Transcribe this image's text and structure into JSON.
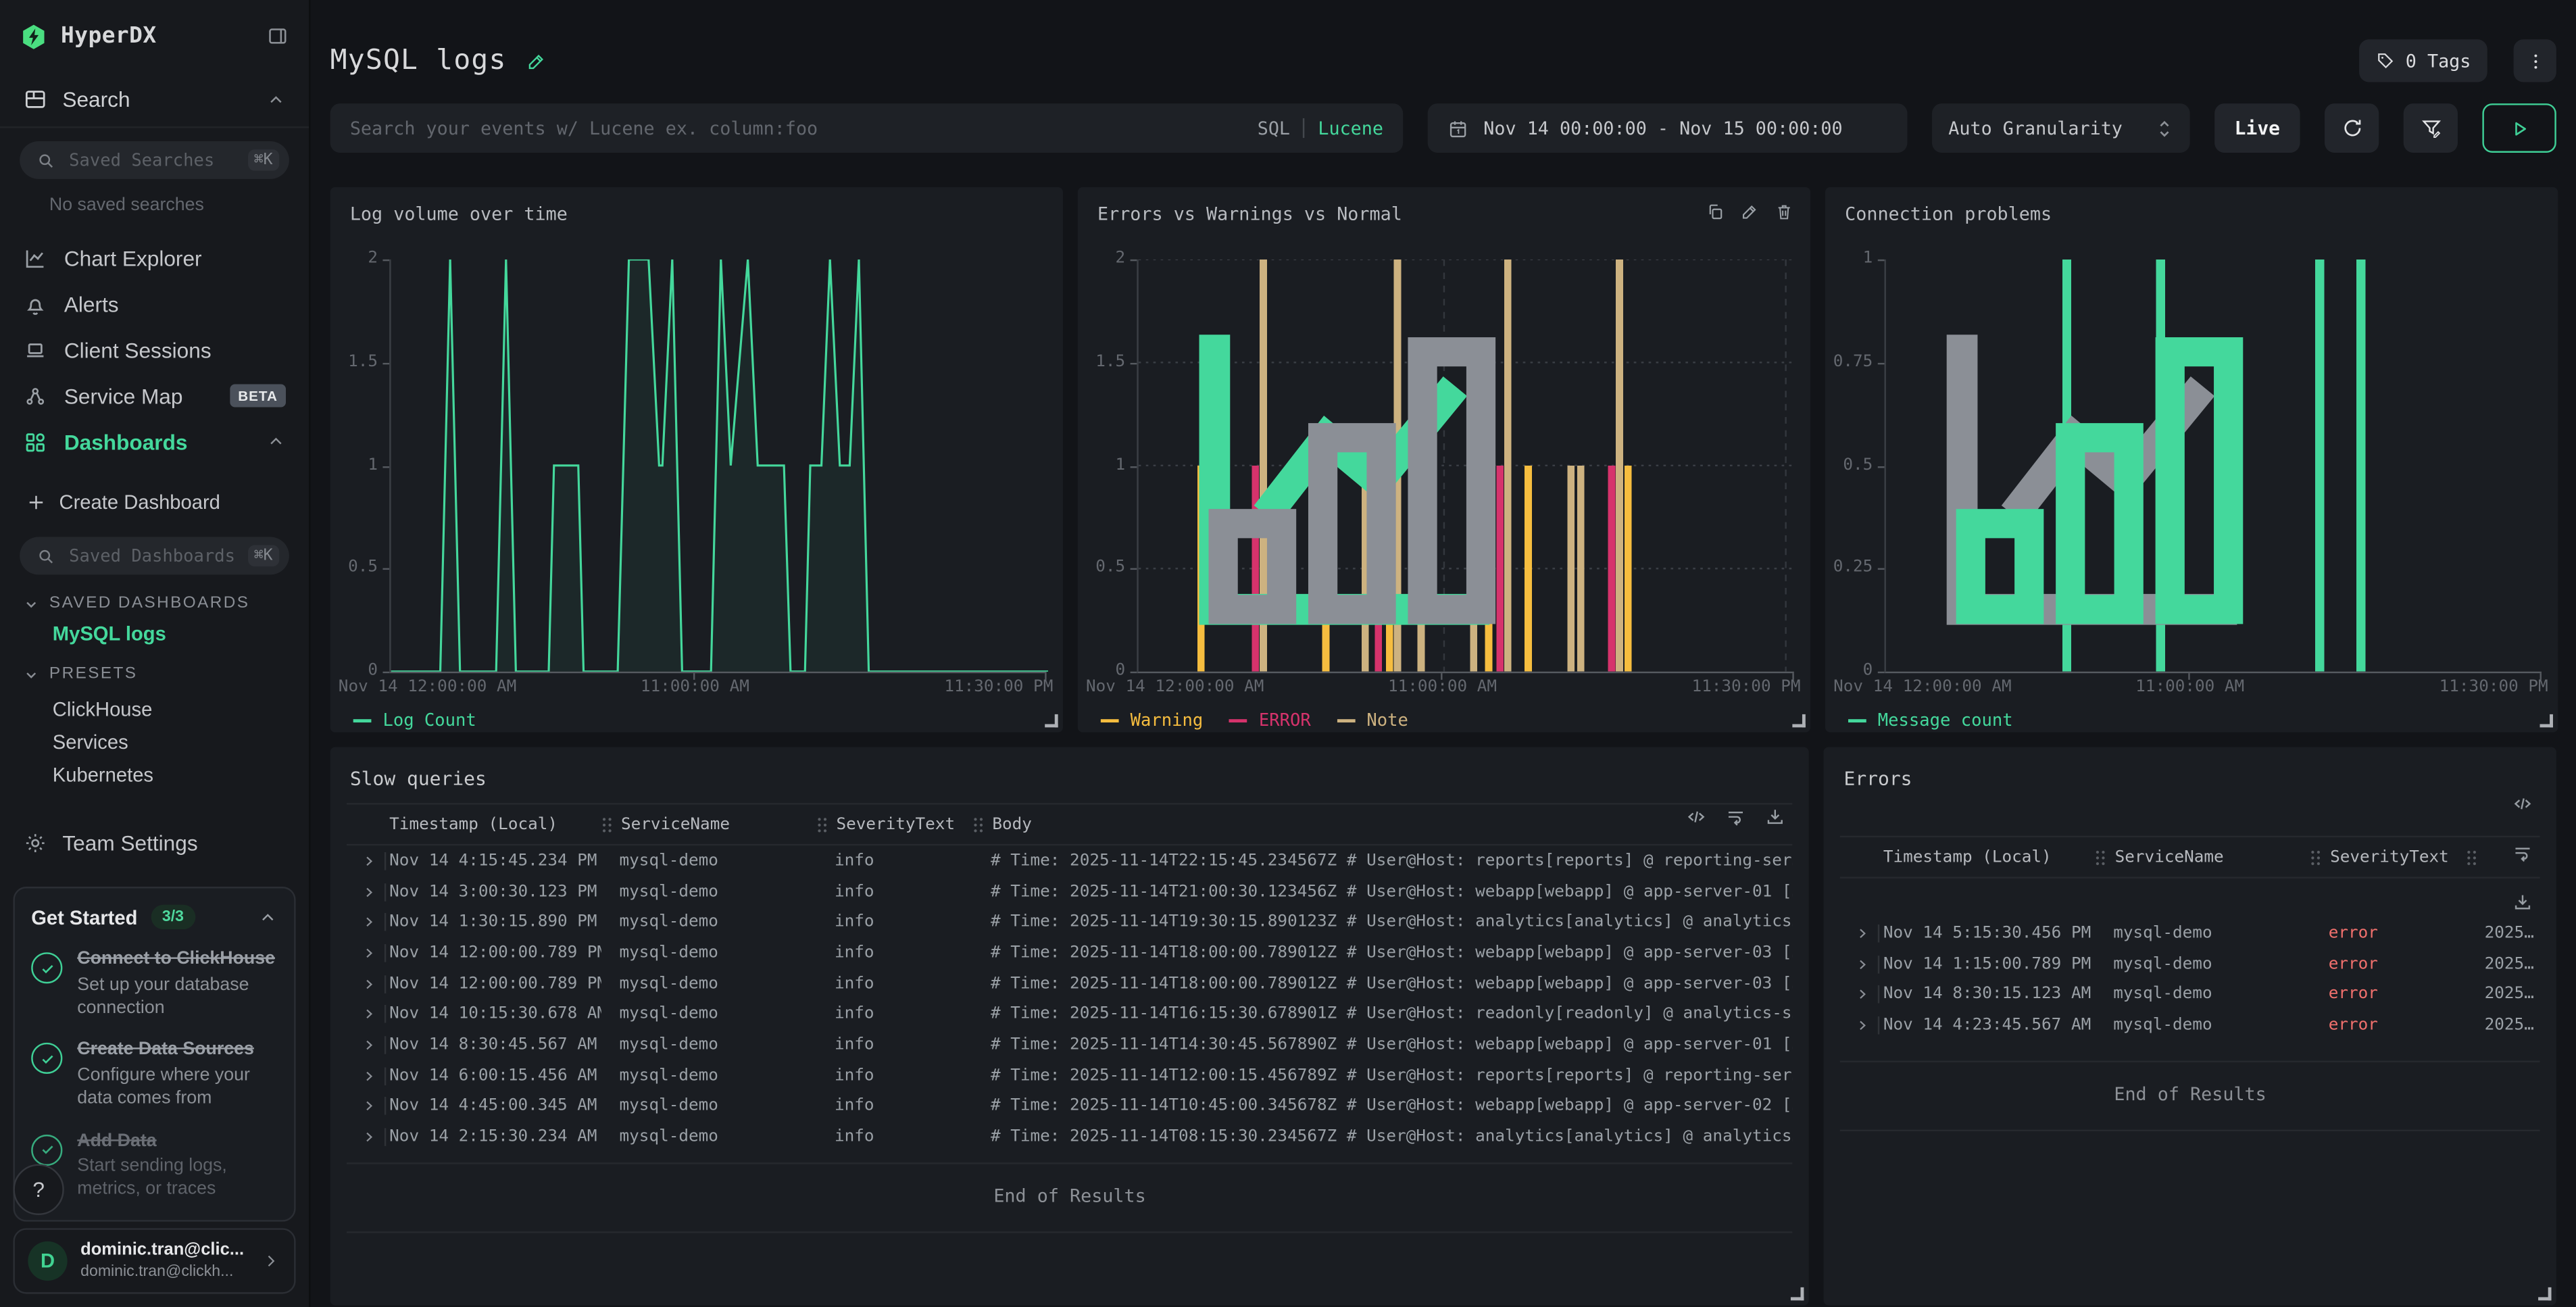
{
  "brand": {
    "name": "HyperDX"
  },
  "sidebar": {
    "search_label": "Search",
    "saved_searches_placeholder": "Saved Searches",
    "shortcut_hint": "⌘K",
    "no_saved_searches": "No saved searches",
    "nav": [
      {
        "label": "Chart Explorer"
      },
      {
        "label": "Alerts"
      },
      {
        "label": "Client Sessions"
      },
      {
        "label": "Service Map",
        "badge": "BETA"
      },
      {
        "label": "Dashboards",
        "active": true
      }
    ],
    "create_dashboard_label": "Create Dashboard",
    "saved_dashboards_placeholder": "Saved Dashboards",
    "sections": {
      "saved": {
        "title": "SAVED DASHBOARDS",
        "items": [
          {
            "label": "MySQL logs",
            "active": true
          }
        ]
      },
      "presets": {
        "title": "PRESETS",
        "items": [
          {
            "label": "ClickHouse"
          },
          {
            "label": "Services"
          },
          {
            "label": "Kubernetes"
          }
        ]
      }
    },
    "team_settings_label": "Team Settings",
    "get_started": {
      "title": "Get Started",
      "badge": "3/3",
      "items": [
        {
          "title": "Connect to ClickHouse",
          "desc": "Set up your database connection",
          "done": true
        },
        {
          "title": "Create Data Sources",
          "desc": "Configure where your data comes from",
          "done": true
        },
        {
          "title": "Add Data",
          "desc": "Start sending logs, metrics, or traces",
          "done": true
        }
      ]
    },
    "help_label": "?",
    "user": {
      "initial": "D",
      "name": "dominic.tran@clic...",
      "email": "dominic.tran@clickh..."
    }
  },
  "header": {
    "title": "MySQL logs",
    "tags_label": "0 Tags"
  },
  "toolbar": {
    "search_placeholder": "Search your events w/ Lucene ex. column:foo",
    "sql_label": "SQL",
    "lucene_label": "Lucene",
    "date_range": "Nov 14 00:00:00 - Nov 15 00:00:00",
    "granularity": "Auto Granularity",
    "live_label": "Live"
  },
  "colors": {
    "accent_green": "#44d89c",
    "warning_yellow": "#f6bd3f",
    "error_pink": "#d6336c",
    "note_tan": "#cdb280",
    "error_text": "#f0706d"
  },
  "chart_data": [
    {
      "type": "line",
      "title": "Log volume over time",
      "ylabel": "",
      "xlabel": "",
      "ylim": [
        0,
        2
      ],
      "yticks": [
        {
          "v": 2,
          "label": "2"
        },
        {
          "v": 1.5,
          "label": "1.5"
        },
        {
          "v": 1,
          "label": "1"
        },
        {
          "v": 0.5,
          "label": "0.5"
        },
        {
          "v": 0,
          "label": "0"
        }
      ],
      "xticks": [
        {
          "pos": 0,
          "label": "Nov 14 12:00:00 AM",
          "align": "left"
        },
        {
          "pos": 0.465,
          "label": "11:00:00 AM",
          "align": "center"
        },
        {
          "pos": 1,
          "label": "11:30:00 PM",
          "align": "right"
        }
      ],
      "series": [
        {
          "name": "Log Count",
          "color": "#44d89c",
          "points": [
            [
              0,
              0
            ],
            [
              0.075,
              0
            ],
            [
              0.09,
              2
            ],
            [
              0.105,
              0
            ],
            [
              0.16,
              0
            ],
            [
              0.175,
              2
            ],
            [
              0.19,
              0
            ],
            [
              0.24,
              0
            ],
            [
              0.248,
              1
            ],
            [
              0.285,
              1
            ],
            [
              0.293,
              0
            ],
            [
              0.345,
              0
            ],
            [
              0.362,
              2
            ],
            [
              0.392,
              2
            ],
            [
              0.408,
              1
            ],
            [
              0.413,
              1
            ],
            [
              0.428,
              2
            ],
            [
              0.443,
              0
            ],
            [
              0.487,
              0
            ],
            [
              0.502,
              2
            ],
            [
              0.517,
              1
            ],
            [
              0.543,
              2
            ],
            [
              0.558,
              1
            ],
            [
              0.598,
              1
            ],
            [
              0.608,
              0
            ],
            [
              0.63,
              0
            ],
            [
              0.638,
              1
            ],
            [
              0.655,
              1
            ],
            [
              0.668,
              2
            ],
            [
              0.683,
              1
            ],
            [
              0.698,
              1
            ],
            [
              0.712,
              2
            ],
            [
              0.727,
              0
            ],
            [
              1,
              0
            ]
          ]
        }
      ],
      "legend_position": "bottom",
      "grid": null,
      "view": "line",
      "bar_width": 4.4
    },
    {
      "type": "bar",
      "title": "Errors vs Warnings vs Normal",
      "ylabel": "",
      "xlabel": "",
      "ylim": [
        0,
        2
      ],
      "yticks": [
        {
          "v": 2,
          "label": "2"
        },
        {
          "v": 1.5,
          "label": "1.5"
        },
        {
          "v": 1,
          "label": "1"
        },
        {
          "v": 0.5,
          "label": "0.5"
        },
        {
          "v": 0,
          "label": "0"
        }
      ],
      "xticks": [
        {
          "pos": 0,
          "label": "Nov 14 12:00:00 AM",
          "align": "left"
        },
        {
          "pos": 0.465,
          "label": "11:00:00 AM",
          "align": "center"
        },
        {
          "pos": 1,
          "label": "11:30:00 PM",
          "align": "right"
        }
      ],
      "series": [
        {
          "name": "Warning",
          "color": "#f6bd3f"
        },
        {
          "name": "ERROR",
          "color": "#d6336c"
        },
        {
          "name": "Note",
          "color": "#cdb280"
        }
      ],
      "bars": [
        {
          "x": 0.095,
          "v": 1,
          "series": "Warning"
        },
        {
          "x": 0.178,
          "v": 1,
          "series": "ERROR"
        },
        {
          "x": 0.19,
          "v": 2,
          "series": "Note"
        },
        {
          "x": 0.285,
          "v": 1,
          "series": "Warning"
        },
        {
          "x": 0.345,
          "v": 1,
          "series": "Note"
        },
        {
          "x": 0.365,
          "v": 1,
          "series": "ERROR"
        },
        {
          "x": 0.382,
          "v": 1,
          "series": "Warning"
        },
        {
          "x": 0.394,
          "v": 2,
          "series": "Note"
        },
        {
          "x": 0.43,
          "v": 1,
          "series": "Note"
        },
        {
          "x": 0.51,
          "v": 1,
          "series": "Note"
        },
        {
          "x": 0.533,
          "v": 1,
          "series": "Warning"
        },
        {
          "x": 0.55,
          "v": 1,
          "series": "ERROR"
        },
        {
          "x": 0.562,
          "v": 2,
          "series": "Note"
        },
        {
          "x": 0.593,
          "v": 1,
          "series": "Warning"
        },
        {
          "x": 0.658,
          "v": 1,
          "series": "Note"
        },
        {
          "x": 0.673,
          "v": 1,
          "series": "Note"
        },
        {
          "x": 0.72,
          "v": 1,
          "series": "ERROR"
        },
        {
          "x": 0.732,
          "v": 2,
          "series": "Note"
        },
        {
          "x": 0.745,
          "v": 1,
          "series": "Warning"
        }
      ],
      "legend_position": "bottom",
      "grid": {
        "h_dotted": true,
        "vlines": [
          0.465,
          0.985
        ]
      },
      "view": "bar",
      "bar_width": 4.4
    },
    {
      "type": "bar",
      "title": "Connection problems",
      "ylabel": "",
      "xlabel": "",
      "ylim": [
        0,
        1
      ],
      "yticks": [
        {
          "v": 1,
          "label": "1"
        },
        {
          "v": 0.75,
          "label": "0.75"
        },
        {
          "v": 0.5,
          "label": "0.5"
        },
        {
          "v": 0.25,
          "label": "0.25"
        },
        {
          "v": 0,
          "label": "0"
        }
      ],
      "xticks": [
        {
          "pos": 0,
          "label": "Nov 14 12:00:00 AM",
          "align": "left"
        },
        {
          "pos": 0.465,
          "label": "11:00:00 AM",
          "align": "center"
        },
        {
          "pos": 1,
          "label": "11:30:00 PM",
          "align": "right"
        }
      ],
      "series": [
        {
          "name": "Message count",
          "color": "#44d89c"
        }
      ],
      "bars": [
        {
          "x": 0.275,
          "v": 1,
          "series": "Message count"
        },
        {
          "x": 0.418,
          "v": 1,
          "series": "Message count"
        },
        {
          "x": 0.66,
          "v": 1,
          "series": "Message count"
        },
        {
          "x": 0.7225,
          "v": 1,
          "series": "Message count"
        }
      ],
      "legend_position": "bottom",
      "grid": null,
      "view": "bar",
      "bar_width": 5.5
    }
  ],
  "tables": {
    "slow_queries": {
      "title": "Slow queries",
      "columns": [
        "Timestamp (Local)",
        "ServiceName",
        "SeverityText",
        "Body"
      ],
      "rows": [
        [
          "Nov 14 4:15:45.234 PM",
          "mysql-demo",
          "info",
          "# Time: 2025-11-14T22:15:45.234567Z # User@Host: reports[reports] @ reporting-ser…"
        ],
        [
          "Nov 14 3:00:30.123 PM",
          "mysql-demo",
          "info",
          "# Time: 2025-11-14T21:00:30.123456Z # User@Host: webapp[webapp] @ app-server-01 […"
        ],
        [
          "Nov 14 1:30:15.890 PM",
          "mysql-demo",
          "info",
          "# Time: 2025-11-14T19:30:15.890123Z # User@Host: analytics[analytics] @ analytics…"
        ],
        [
          "Nov 14 12:00:00.789 PM",
          "mysql-demo",
          "info",
          "# Time: 2025-11-14T18:00:00.789012Z # User@Host: webapp[webapp] @ app-server-03 […"
        ],
        [
          "Nov 14 12:00:00.789 PM",
          "mysql-demo",
          "info",
          "# Time: 2025-11-14T18:00:00.789012Z # User@Host: webapp[webapp] @ app-server-03 […"
        ],
        [
          "Nov 14 10:15:30.678 AM",
          "mysql-demo",
          "info",
          "# Time: 2025-11-14T16:15:30.678901Z # User@Host: readonly[readonly] @ analytics-s…"
        ],
        [
          "Nov 14 8:30:45.567 AM",
          "mysql-demo",
          "info",
          "# Time: 2025-11-14T14:30:45.567890Z # User@Host: webapp[webapp] @ app-server-01 […"
        ],
        [
          "Nov 14 6:00:15.456 AM",
          "mysql-demo",
          "info",
          "# Time: 2025-11-14T12:00:15.456789Z # User@Host: reports[reports] @ reporting-ser…"
        ],
        [
          "Nov 14 4:45:00.345 AM",
          "mysql-demo",
          "info",
          "# Time: 2025-11-14T10:45:00.345678Z # User@Host: webapp[webapp] @ app-server-02 […"
        ],
        [
          "Nov 14 2:15:30.234 AM",
          "mysql-demo",
          "info",
          "# Time: 2025-11-14T08:15:30.234567Z # User@Host: analytics[analytics] @ analytics…"
        ]
      ]
    },
    "errors": {
      "title": "Errors",
      "columns": [
        "Timestamp (Local)",
        "ServiceName",
        "SeverityText"
      ],
      "rows": [
        [
          "Nov 14 5:15:30.456 PM",
          "mysql-demo",
          "error",
          "2025…"
        ],
        [
          "Nov 14 1:15:00.789 PM",
          "mysql-demo",
          "error",
          "2025…"
        ],
        [
          "Nov 14 8:30:15.123 AM",
          "mysql-demo",
          "error",
          "2025…"
        ],
        [
          "Nov 14 4:23:45.567 AM",
          "mysql-demo",
          "error",
          "2025…"
        ]
      ]
    }
  },
  "end_of_results": "End of Results"
}
